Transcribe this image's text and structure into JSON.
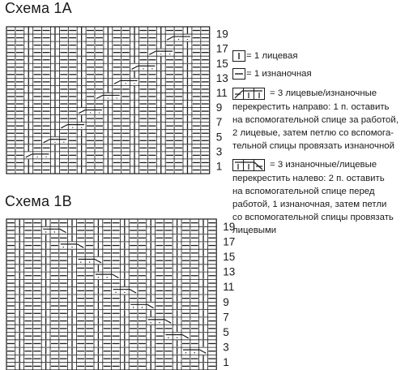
{
  "chartA": {
    "title": "Схема 1А",
    "row_numbers": [
      "19",
      "17",
      "15",
      "13",
      "11",
      "9",
      "7",
      "5",
      "3",
      "1"
    ]
  },
  "chartB": {
    "title": "Схема 1В",
    "row_numbers": [
      "19",
      "17",
      "15",
      "13",
      "11",
      "9",
      "7",
      "5",
      "3",
      "1"
    ]
  },
  "legend": {
    "knit": "= 1 лицевая",
    "purl": "= 1 изнаночная",
    "cross_right_head": "=   3   лицевые/изнаночные",
    "cross_right_desc": [
      "перекрестить направо: 1 п. оставить",
      "на вспомогательной спице за работой,",
      "2 лицевые, затем петлю со вспомога-",
      "тельной спицы провязать изнаночной"
    ],
    "cross_left_head": "=   3   изнаночные/лицевые",
    "cross_left_desc": [
      "перекрестить налево: 2 п. оставить",
      "на   вспомогательной   спице   перед",
      "работой, 1 изнаночная, затем петли",
      "со вспомогательной спицы провязать",
      "лицевыми"
    ]
  }
}
